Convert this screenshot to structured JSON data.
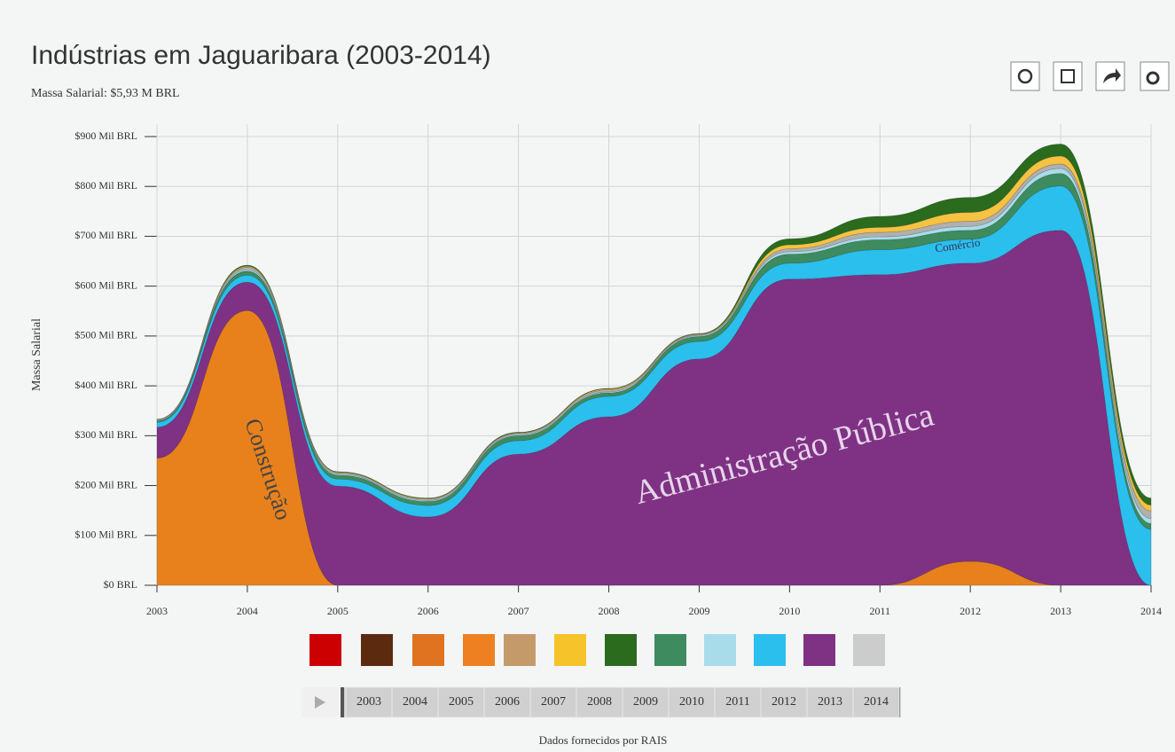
{
  "chart_data": {
    "type": "stacked_area",
    "title": "Indústrias em Jaguaribara (2003-2014)",
    "subtitle": "Massa Salarial: $5,93 M BRL",
    "y_label": "Massa Salarial",
    "source": "Dados fornecidos por RAIS",
    "x": [
      2003,
      2004,
      2005,
      2006,
      2007,
      2008,
      2009,
      2010,
      2011,
      2012,
      2013,
      2014
    ],
    "xlim": [
      2003,
      2014
    ],
    "xticks": [
      2003,
      2004,
      2005,
      2006,
      2007,
      2008,
      2009,
      2010,
      2011,
      2012,
      2013,
      2014
    ],
    "ylim": [
      0,
      900
    ],
    "yticks": [
      {
        "value": 0,
        "label": "$0 BRL"
      },
      {
        "value": 100,
        "label": "$100 Mil BRL"
      },
      {
        "value": 200,
        "label": "$200 Mil BRL"
      },
      {
        "value": 300,
        "label": "$300 Mil BRL"
      },
      {
        "value": 400,
        "label": "$400 Mil BRL"
      },
      {
        "value": 500,
        "label": "$500 Mil BRL"
      },
      {
        "value": 600,
        "label": "$600 Mil BRL"
      },
      {
        "value": 700,
        "label": "$700 Mil BRL"
      },
      {
        "value": 800,
        "label": "$800 Mil BRL"
      },
      {
        "value": 900,
        "label": "$900 Mil BRL"
      }
    ],
    "grid": true,
    "series": [
      {
        "name": "Construção",
        "color": "#e8811c",
        "values": [
          255,
          551,
          0,
          0,
          0,
          0,
          0,
          0,
          0,
          48,
          0,
          0
        ]
      },
      {
        "name": "Administração Pública",
        "color": "#7f3284",
        "values": [
          62,
          57,
          199,
          137,
          263,
          338,
          454,
          614,
          623,
          598,
          712,
          0
        ]
      },
      {
        "name": "Comércio",
        "color": "#2bbfed",
        "values": [
          10,
          14,
          14,
          23,
          27,
          41,
          35,
          32,
          50,
          48,
          89,
          112
        ]
      },
      {
        "color": "#3d8b5e",
        "values": [
          3,
          8,
          8,
          8,
          10,
          7,
          10,
          18,
          20,
          18,
          25,
          12
        ]
      },
      {
        "color": "#a8dcea",
        "values": [
          1,
          3,
          2,
          2,
          2,
          2,
          2,
          5,
          6,
          8,
          10,
          10
        ]
      },
      {
        "color": "#b0b0b0",
        "values": [
          2,
          5,
          3,
          3,
          3,
          4,
          2,
          6,
          9,
          10,
          9,
          15
        ]
      },
      {
        "color": "#f5c242",
        "values": [
          0,
          2,
          1,
          1,
          1,
          2,
          1,
          8,
          10,
          18,
          16,
          12
        ]
      },
      {
        "color": "#2a6b1e",
        "values": [
          0,
          2,
          1,
          1,
          1,
          1,
          1,
          12,
          22,
          30,
          24,
          14
        ]
      }
    ]
  }
}
